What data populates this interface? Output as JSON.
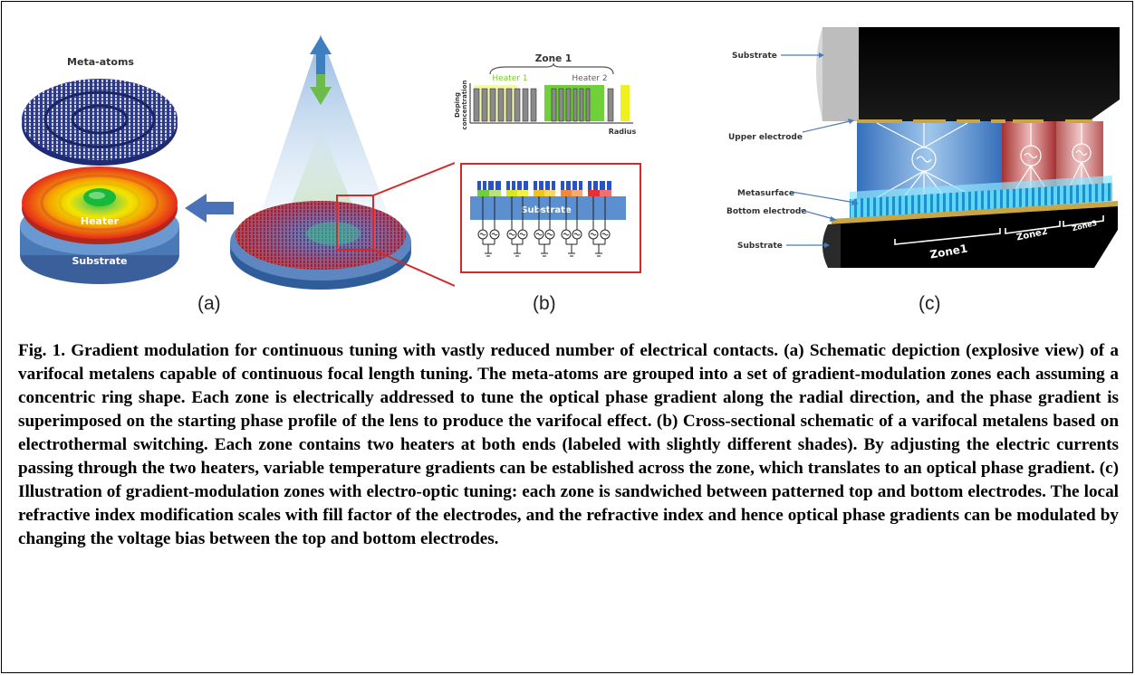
{
  "panel_a": {
    "meta_atoms_label": "Meta-atoms",
    "heater_label": "Heater",
    "substrate_label": "Substrate",
    "panel_label": "(a)"
  },
  "panel_b": {
    "zone_label": "Zone 1",
    "heater1_label": "Heater 1",
    "heater2_label": "Heater 2",
    "y_axis_label_line1": "Doping",
    "y_axis_label_line2": "concentration",
    "x_axis_label": "Radius",
    "substrate_label": "Substrate",
    "panel_label": "(b)"
  },
  "panel_c": {
    "substrate_top_label": "Substrate",
    "upper_electrode_label": "Upper electrode",
    "metasurface_label": "Metasurface",
    "bottom_electrode_label": "Bottom electrode",
    "substrate_bottom_label": "Substrate",
    "zone1_label": "Zone1",
    "zone2_label": "Zone2",
    "zone3_label": "Zone3",
    "panel_label": "(c)"
  },
  "caption": {
    "text": "Fig. 1. Gradient modulation for continuous tuning with vastly reduced number of electrical contacts. (a) Schematic depiction (explosive view) of a varifocal metalens capable of continuous focal length tuning. The meta-atoms are grouped into a set of gradient-modulation zones each assuming a concentric ring shape. Each zone is electrically addressed to tune the optical phase gradient along the radial direction, and the phase gradient is superimposed on the starting phase profile of the lens to produce the varifocal effect. (b) Cross-sectional schematic of a varifocal metalens based on electrothermal switching. Each zone contains two heaters at both ends (labeled with slightly different shades). By adjusting the electric currents passing through the two heaters, variable temperature gradients can be established across the zone, which translates to an optical phase gradient. (c) Illustration of gradient-modulation zones with electro-optic tuning: each zone is sandwiched between patterned top and bottom electrodes. The local refractive index modification scales with fill factor of the electrodes, and the refractive index and hence optical phase gradients can be modulated by changing the voltage bias between the top and bottom electrodes."
  },
  "colors": {
    "meta_atom_blue": "#2b3a8f",
    "heater_yellow": "#f2e200",
    "heater_green": "#7ed321",
    "heater_red": "#e8231c",
    "substrate_blue": "#4a79b8",
    "zone_box_red": "#d42a2a",
    "electrode_gold": "#c9a544",
    "meta_cyan": "#34c8f0"
  }
}
